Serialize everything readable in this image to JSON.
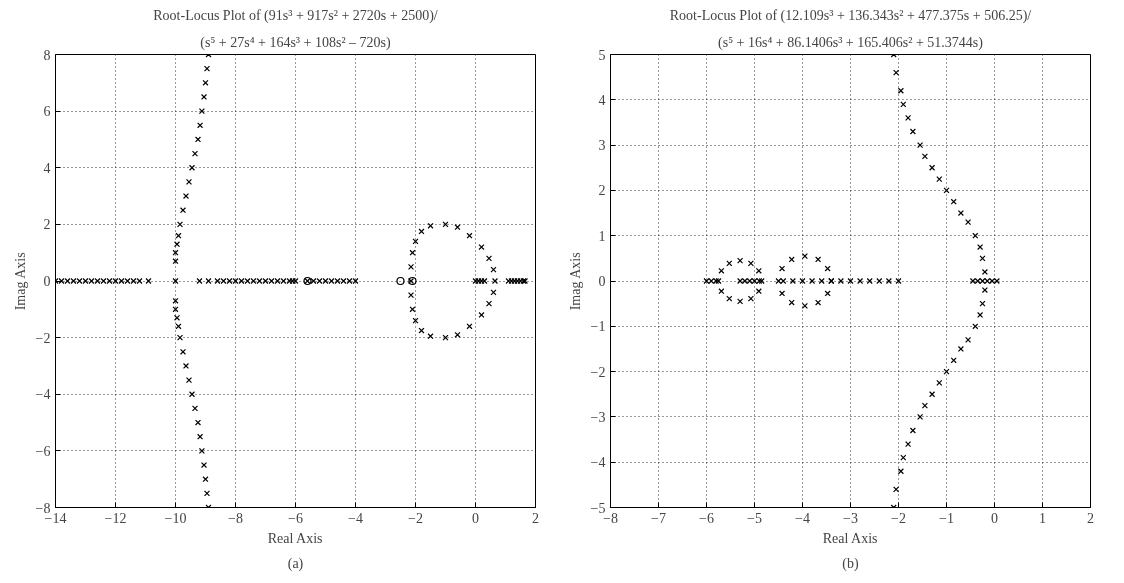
{
  "chart_data": [
    {
      "type": "scatter",
      "title": "Root-Locus Plot of (91s³ + 917s² + 2720s + 2500)/",
      "subtitle": "(s⁵ + 27s⁴ + 164s³ + 108s² – 720s)",
      "xlabel": "Real Axis",
      "ylabel": "Imag Axis",
      "annotations": [
        "(a)"
      ],
      "xlim": [
        -14,
        2
      ],
      "ylim": [
        -8,
        8
      ],
      "xticks": [
        -14,
        -12,
        -10,
        -8,
        -6,
        -4,
        -2,
        0,
        2
      ],
      "yticks": [
        -8,
        -6,
        -4,
        -2,
        0,
        2,
        4,
        6,
        8
      ],
      "grid": true,
      "series": [
        {
          "color": "#000000",
          "marker": "cross",
          "x": [
            -10,
            -10,
            -9.95,
            -9.9,
            -9.85,
            -9.75,
            -9.65,
            -9.55,
            -9.45,
            -9.35,
            -9.25,
            -9.18,
            -9.12,
            -9.05,
            -9.0,
            -8.95,
            -8.9,
            -10,
            -10,
            -9.95,
            -9.9,
            -9.85,
            -9.75,
            -9.65,
            -9.55,
            -9.45,
            -9.35,
            -9.25,
            -9.18,
            -9.12,
            -9.05,
            -9.0,
            -8.95,
            -8.9
          ],
          "values": [
            0.7,
            1.0,
            1.3,
            1.6,
            2,
            2.5,
            3,
            3.5,
            4,
            4.5,
            5,
            5.5,
            6,
            6.5,
            7,
            7.5,
            8,
            -0.7,
            -1.0,
            -1.3,
            -1.6,
            -2,
            -2.5,
            -3,
            -3.5,
            -4,
            -4.5,
            -5,
            -5.5,
            -6,
            -6.5,
            -7,
            -7.5,
            -8
          ]
        },
        {
          "color": "#000000",
          "marker": "cross",
          "x": [
            -14,
            -13.8,
            -13.6,
            -13.4,
            -13.2,
            -13,
            -12.8,
            -12.6,
            -12.4,
            -12.2,
            -12,
            -11.8,
            -11.6,
            -11.4,
            -11.2,
            -10.9,
            -10,
            -9.2,
            -8.9,
            -8.6,
            -8.4,
            -8.2,
            -8,
            -7.8,
            -7.6,
            -7.4,
            -7.2,
            -7,
            -6.8,
            -6.6,
            -6.4,
            -6.2,
            -6.1,
            -6.0,
            -5.6,
            -5.4,
            -5.2,
            -5,
            -4.8,
            -4.6,
            -4.4,
            -4.2,
            -4.0,
            0,
            0.1,
            0.2,
            0.3,
            1.1,
            1.2,
            1.3,
            1.4,
            1.5,
            1.6,
            1.65
          ],
          "values": [
            0,
            0,
            0,
            0,
            0,
            0,
            0,
            0,
            0,
            0,
            0,
            0,
            0,
            0,
            0,
            0,
            0,
            0,
            0,
            0,
            0,
            0,
            0,
            0,
            0,
            0,
            0,
            0,
            0,
            0,
            0,
            0,
            0,
            0,
            0,
            0,
            0,
            0,
            0,
            0,
            0,
            0,
            0,
            0,
            0,
            0,
            0,
            0,
            0,
            0,
            0,
            0,
            0,
            0
          ]
        },
        {
          "color": "#000000",
          "marker": "cross",
          "x": [
            -2.15,
            -2.15,
            -2.1,
            -2.0,
            -1.8,
            -1.5,
            -1.0,
            -0.6,
            -0.2,
            0.2,
            0.45,
            0.6,
            0.65,
            -2.15,
            -2.1,
            -2.0,
            -1.8,
            -1.5,
            -1.0,
            -0.6,
            -0.2,
            0.2,
            0.45,
            0.6
          ],
          "values": [
            0,
            0.5,
            1,
            1.4,
            1.75,
            1.95,
            2.0,
            1.9,
            1.6,
            1.2,
            0.8,
            0.4,
            0,
            -0.5,
            -1,
            -1.4,
            -1.75,
            -1.95,
            -2.0,
            -1.9,
            -1.6,
            -1.2,
            -0.8,
            -0.4
          ]
        },
        {
          "color": "#000000",
          "marker": "circle",
          "x": [
            -5.6,
            -2.5,
            -2.1
          ],
          "values": [
            0,
            0,
            0
          ]
        }
      ]
    },
    {
      "type": "scatter",
      "title": "Root-Locus Plot of (12.109s³ + 136.343s² + 477.375s + 506.25)/",
      "subtitle": "(s⁵ + 16s⁴ + 86.1406s³ + 165.406s² + 51.3744s)",
      "xlabel": "Real Axis",
      "ylabel": "Imag Axis",
      "annotations": [
        "(b)"
      ],
      "xlim": [
        -8,
        2
      ],
      "ylim": [
        -5,
        5
      ],
      "xticks": [
        -8,
        -7,
        -6,
        -5,
        -4,
        -3,
        -2,
        -1,
        0,
        1,
        2
      ],
      "yticks": [
        -5,
        -4,
        -3,
        -2,
        -1,
        0,
        1,
        2,
        3,
        4,
        5
      ],
      "grid": true,
      "series": [
        {
          "color": "#000000",
          "marker": "cross",
          "x": [
            -4.85,
            -4.91,
            -5.075,
            -5.3,
            -5.525,
            -5.69,
            -5.75,
            -5.69,
            -5.525,
            -5.3,
            -5.075,
            -4.91,
            -3.4,
            -3.476,
            -3.675,
            -3.95,
            -4.225,
            -4.426,
            -4.5,
            -4.426,
            -4.225,
            -3.95,
            -3.675,
            -3.476
          ],
          "values": [
            0,
            0.225,
            0.39,
            0.45,
            0.39,
            0.225,
            0,
            -0.225,
            -0.39,
            -0.45,
            -0.39,
            -0.225,
            0,
            0.275,
            0.476,
            0.55,
            0.476,
            0.275,
            0,
            -0.275,
            -0.476,
            -0.55,
            -0.476,
            -0.275
          ]
        },
        {
          "color": "#000000",
          "marker": "cross",
          "x": [
            -6,
            -5.9,
            -5.8,
            -5.3,
            -5.2,
            -5.1,
            -5.0,
            -4.9,
            -4.4,
            -4.2,
            -4.0,
            -3.8,
            -3.6,
            -3.4,
            -3.2,
            -3.0,
            -2.8,
            -2.6,
            -2.4,
            -2.2,
            -2.0,
            -0.45,
            -0.35,
            -0.25,
            -0.15,
            -0.05,
            0.05
          ],
          "values": [
            0,
            0,
            0,
            0,
            0,
            0,
            0,
            0,
            0,
            0,
            0,
            0,
            0,
            0,
            0,
            0,
            0,
            0,
            0,
            0,
            0,
            0,
            0,
            0,
            0,
            0,
            0
          ]
        },
        {
          "color": "#000000",
          "marker": "cross",
          "x": [
            -0.2,
            -0.25,
            -0.3,
            -0.4,
            -0.55,
            -0.7,
            -0.85,
            -1.0,
            -1.15,
            -1.3,
            -1.45,
            -1.55,
            -1.7,
            -1.8,
            -1.9,
            -1.95,
            -2.05,
            -2.1,
            -0.2,
            -0.25,
            -0.3,
            -0.4,
            -0.55,
            -0.7,
            -0.85,
            -1.0,
            -1.15,
            -1.3,
            -1.45,
            -1.55,
            -1.7,
            -1.8,
            -1.9,
            -1.95,
            -2.05,
            -2.1
          ],
          "values": [
            0.2,
            0.5,
            0.75,
            1,
            1.3,
            1.5,
            1.75,
            2,
            2.25,
            2.5,
            2.75,
            3,
            3.3,
            3.6,
            3.9,
            4.2,
            4.6,
            5,
            -0.2,
            -0.5,
            -0.75,
            -1,
            -1.3,
            -1.5,
            -1.75,
            -2,
            -2.25,
            -2.5,
            -2.75,
            -3,
            -3.3,
            -3.6,
            -3.9,
            -4.2,
            -4.6,
            -5
          ]
        }
      ]
    }
  ]
}
